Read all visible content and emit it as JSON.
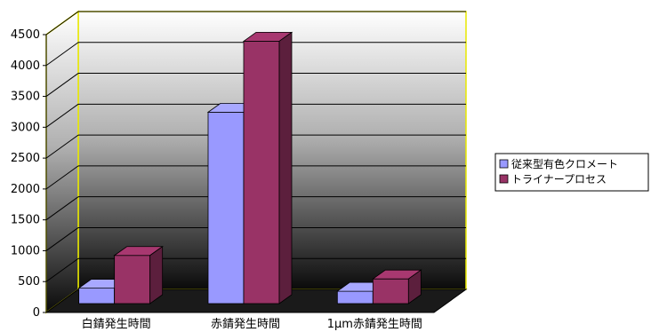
{
  "chart_data": {
    "type": "bar",
    "title": "",
    "xlabel": "",
    "ylabel": "",
    "categories": [
      "白錆発生時間",
      "赤錆発生時間",
      "1μm赤錆発生時間"
    ],
    "series": [
      {
        "name": "従来型有色クロメート",
        "values": [
          250,
          3100,
          200
        ],
        "color": "#9999ff"
      },
      {
        "name": "トライナープロセス",
        "values": [
          780,
          4250,
          400
        ],
        "color": "#993366"
      }
    ],
    "yticks": [
      0,
      500,
      1000,
      1500,
      2000,
      2500,
      3000,
      3500,
      4000,
      4500
    ],
    "ylim": [
      0,
      4500
    ],
    "grid": true,
    "legend_position": "right",
    "style": "3d-clustered"
  }
}
